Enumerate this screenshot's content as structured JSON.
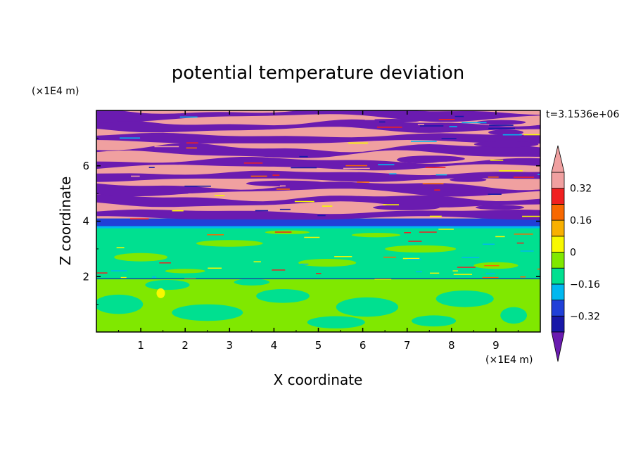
{
  "chart_data": {
    "type": "heatmap",
    "title": "potential temperature deviation",
    "xlabel": "X coordinate",
    "ylabel": "Z coordinate",
    "x_unit": "(×1E4 m)",
    "y_unit": "(×1E4 m)",
    "time_label": "t=3.1536e+06",
    "xlim": [
      0,
      10
    ],
    "ylim": [
      0,
      8
    ],
    "x_ticks": [
      1,
      2,
      3,
      4,
      5,
      6,
      7,
      8,
      9
    ],
    "y_ticks": [
      2,
      4,
      6
    ],
    "colorbar": {
      "levels": [
        -0.4,
        -0.32,
        -0.24,
        -0.16,
        -0.08,
        0,
        0.08,
        0.16,
        0.24,
        0.32,
        0.4
      ],
      "tick_labels": [
        "0.32",
        "0.16",
        "0",
        "−0.16",
        "−0.32"
      ],
      "tick_values": [
        0.32,
        0.16,
        0,
        -0.16,
        -0.32
      ],
      "colors_bottom_to_top": [
        "#1818a8",
        "#2040d8",
        "#00b8f0",
        "#00e090",
        "#80e800",
        "#f8f800",
        "#f8b000",
        "#f86800",
        "#f02020",
        "#f0a0a0"
      ],
      "under_color": "#6a1bb0",
      "over_color": "#f0a0a0"
    },
    "regions": [
      {
        "z_range": [
          0,
          2.0
        ],
        "dominant_value": "0 to 0.08",
        "secondary_value": "-0.08 to 0"
      },
      {
        "z_range": [
          2.0,
          3.8
        ],
        "dominant_value": "-0.08 to 0",
        "secondary_value": "0 to 0.08"
      },
      {
        "z_range": [
          3.8,
          4.1
        ],
        "dominant_value": "below -0.32"
      },
      {
        "z_range": [
          4.1,
          8.0
        ],
        "dominant_value": "alternating bands above 0.4 and below -0.4"
      }
    ]
  }
}
